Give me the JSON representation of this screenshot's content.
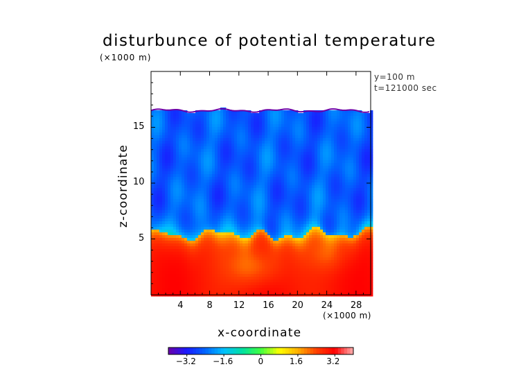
{
  "chart_data": {
    "type": "heatmap",
    "title": "disturbunce of potential temperature",
    "xlabel": "x-coordinate",
    "ylabel": "z-coordinate",
    "x_unit": "(×1000 m)",
    "y_unit": "(×1000 m)",
    "annotations": [
      "y=100 m",
      "t=121000 sec"
    ],
    "x_ticks": [
      4,
      8,
      12,
      16,
      20,
      24,
      28
    ],
    "y_ticks": [
      5,
      10,
      15
    ],
    "xlim": [
      0,
      30
    ],
    "ylim": [
      0,
      20
    ],
    "colorbar": {
      "ticks": [
        "−3.2",
        "−1.6",
        "0",
        "1.6",
        "3.2"
      ],
      "range": [
        -4,
        4
      ]
    },
    "field_summary": {
      "upper_layer_value": -2.5,
      "lower_layer_value": 3.0,
      "interface_height_km": 5.5,
      "data_top_km": 16.5
    },
    "colors": {
      "colormap": [
        "#6a00a8",
        "#1a1aff",
        "#0066ff",
        "#00c0ff",
        "#00e0a0",
        "#40ff40",
        "#ffff00",
        "#ffb000",
        "#ff4000",
        "#ff0000",
        "#ffb0b0"
      ]
    }
  }
}
